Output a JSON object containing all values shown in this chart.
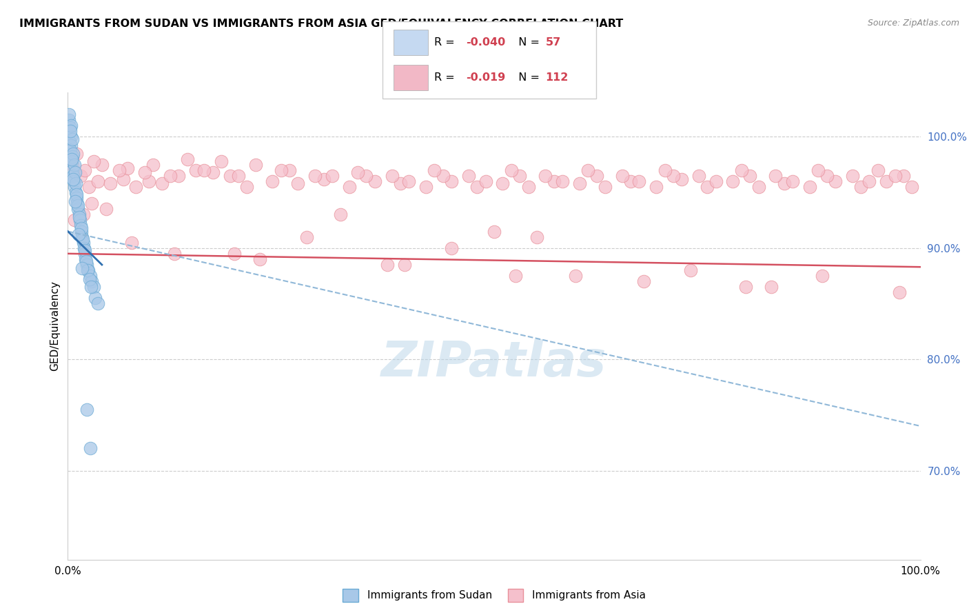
{
  "title": "IMMIGRANTS FROM SUDAN VS IMMIGRANTS FROM ASIA GED/EQUIVALENCY CORRELATION CHART",
  "source": "Source: ZipAtlas.com",
  "ylabel": "GED/Equivalency",
  "xrange": [
    0.0,
    100.0
  ],
  "yrange": [
    62.0,
    104.0
  ],
  "legend_r1_val": "-0.040",
  "legend_n1_val": "57",
  "legend_r2_val": "-0.019",
  "legend_n2_val": "112",
  "color_blue": "#a8c8e8",
  "color_blue_dark": "#6aaad4",
  "color_pink": "#f5c0cc",
  "color_pink_dark": "#e8909a",
  "color_trend_blue": "#3070b0",
  "color_trend_pink": "#d45060",
  "color_trend_blue_dashed": "#90b8d8",
  "watermark_color": "#b8d4e8",
  "legend_box_blue": "#c5d9f1",
  "legend_box_pink": "#f2b8c6",
  "yticks": [
    70.0,
    80.0,
    90.0,
    100.0
  ],
  "sudan_x": [
    0.15,
    0.25,
    0.35,
    0.2,
    0.4,
    0.3,
    0.5,
    0.45,
    0.55,
    0.6,
    0.7,
    0.8,
    0.9,
    1.0,
    1.1,
    1.2,
    1.3,
    1.4,
    1.5,
    1.6,
    1.7,
    1.8,
    1.9,
    2.0,
    2.1,
    2.2,
    2.4,
    2.6,
    2.8,
    3.0,
    3.2,
    3.5,
    0.1,
    0.35,
    0.5,
    0.65,
    0.75,
    0.85,
    0.95,
    1.05,
    1.15,
    1.35,
    1.55,
    1.75,
    1.95,
    2.15,
    2.35,
    2.55,
    2.75,
    0.25,
    0.45,
    0.65,
    0.85,
    1.25,
    1.65,
    2.25,
    2.65
  ],
  "sudan_y": [
    101.5,
    100.8,
    100.0,
    99.5,
    99.2,
    98.8,
    98.2,
    97.8,
    97.0,
    96.5,
    96.0,
    95.5,
    95.0,
    94.5,
    94.0,
    93.5,
    93.0,
    92.5,
    92.0,
    91.5,
    91.0,
    90.5,
    90.0,
    89.5,
    89.0,
    88.5,
    88.0,
    87.5,
    87.0,
    86.5,
    85.5,
    85.0,
    102.0,
    101.0,
    99.8,
    98.5,
    97.5,
    96.8,
    95.8,
    94.8,
    93.8,
    92.8,
    91.8,
    90.8,
    89.8,
    88.8,
    88.0,
    87.2,
    86.5,
    100.5,
    98.0,
    96.2,
    94.2,
    91.2,
    88.2,
    75.5,
    72.0
  ],
  "asia_x": [
    0.5,
    1.5,
    2.5,
    3.5,
    5.0,
    6.5,
    8.0,
    9.5,
    11.0,
    13.0,
    15.0,
    17.0,
    19.0,
    21.0,
    24.0,
    27.0,
    30.0,
    33.0,
    36.0,
    39.0,
    42.0,
    45.0,
    48.0,
    51.0,
    54.0,
    57.0,
    60.0,
    63.0,
    66.0,
    69.0,
    72.0,
    75.0,
    78.0,
    81.0,
    84.0,
    87.0,
    90.0,
    93.0,
    96.0,
    99.0,
    2.0,
    4.0,
    7.0,
    10.0,
    14.0,
    18.0,
    22.0,
    26.0,
    31.0,
    35.0,
    40.0,
    44.0,
    49.0,
    53.0,
    58.0,
    62.0,
    67.0,
    71.0,
    76.0,
    80.0,
    85.0,
    89.0,
    94.0,
    98.0,
    1.0,
    3.0,
    6.0,
    9.0,
    12.0,
    16.0,
    20.0,
    25.0,
    29.0,
    34.0,
    38.0,
    43.0,
    47.0,
    52.0,
    56.0,
    61.0,
    65.0,
    70.0,
    74.0,
    79.0,
    83.0,
    88.0,
    92.0,
    95.0,
    97.0,
    50.0,
    32.0,
    55.0,
    0.8,
    1.8,
    2.8,
    7.5,
    12.5,
    22.5,
    37.5,
    52.5,
    67.5,
    82.5,
    97.5,
    45.0,
    28.0,
    73.0,
    88.5,
    4.5,
    19.5,
    39.5,
    59.5,
    79.5
  ],
  "asia_y": [
    97.5,
    96.5,
    95.5,
    96.0,
    95.8,
    96.2,
    95.5,
    96.0,
    95.8,
    96.5,
    97.0,
    96.8,
    96.5,
    95.5,
    96.0,
    95.8,
    96.2,
    95.5,
    96.0,
    95.8,
    95.5,
    96.0,
    95.5,
    95.8,
    95.5,
    96.0,
    95.8,
    95.5,
    96.0,
    95.5,
    96.2,
    95.5,
    96.0,
    95.5,
    95.8,
    95.5,
    96.0,
    95.5,
    96.0,
    95.5,
    97.0,
    97.5,
    97.2,
    97.5,
    98.0,
    97.8,
    97.5,
    97.0,
    96.5,
    96.5,
    96.0,
    96.5,
    96.0,
    96.5,
    96.0,
    96.5,
    96.0,
    96.5,
    96.0,
    96.5,
    96.0,
    96.5,
    96.0,
    96.5,
    98.5,
    97.8,
    97.0,
    96.8,
    96.5,
    97.0,
    96.5,
    97.0,
    96.5,
    96.8,
    96.5,
    97.0,
    96.5,
    97.0,
    96.5,
    97.0,
    96.5,
    97.0,
    96.5,
    97.0,
    96.5,
    97.0,
    96.5,
    97.0,
    96.5,
    91.5,
    93.0,
    91.0,
    92.5,
    93.0,
    94.0,
    90.5,
    89.5,
    89.0,
    88.5,
    87.5,
    87.0,
    86.5,
    86.0,
    90.0,
    91.0,
    88.0,
    87.5,
    93.5,
    89.5,
    88.5,
    87.5,
    86.5
  ],
  "pink_trend_x0": 0.0,
  "pink_trend_y0": 89.5,
  "pink_trend_x1": 100.0,
  "pink_trend_y1": 88.3,
  "blue_solid_x0": 0.0,
  "blue_solid_y0": 91.5,
  "blue_solid_x1": 4.0,
  "blue_solid_y1": 88.5,
  "blue_dashed_x0": 0.0,
  "blue_dashed_y0": 91.5,
  "blue_dashed_x1": 100.0,
  "blue_dashed_y1": 74.0
}
